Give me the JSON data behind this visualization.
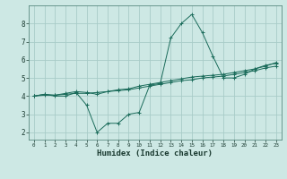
{
  "xlabel": "Humidex (Indice chaleur)",
  "bg_color": "#cde8e4",
  "grid_color": "#a8ccc8",
  "line_color": "#1a6b5a",
  "x_ticks": [
    0,
    1,
    2,
    3,
    4,
    5,
    6,
    7,
    8,
    9,
    10,
    11,
    12,
    13,
    14,
    15,
    16,
    17,
    18,
    19,
    20,
    21,
    22,
    23
  ],
  "y_ticks": [
    2,
    3,
    4,
    5,
    6,
    7,
    8
  ],
  "ylim": [
    1.6,
    9.0
  ],
  "xlim": [
    -0.5,
    23.5
  ],
  "line1_x": [
    0,
    1,
    2,
    3,
    4,
    5,
    6,
    7,
    8,
    9,
    10,
    11,
    12,
    13,
    14,
    15,
    16,
    17,
    18,
    19,
    20,
    21,
    22,
    23
  ],
  "line1_y": [
    4.0,
    4.1,
    4.0,
    4.0,
    4.2,
    3.5,
    2.0,
    2.5,
    2.5,
    3.0,
    3.1,
    4.6,
    4.7,
    7.2,
    8.0,
    8.5,
    7.5,
    6.2,
    5.0,
    5.0,
    5.2,
    5.5,
    5.7,
    5.8
  ],
  "line2_x": [
    0,
    1,
    2,
    3,
    4,
    5,
    6,
    7,
    8,
    9,
    10,
    11,
    12,
    13,
    14,
    15,
    16,
    17,
    18,
    19,
    20,
    21,
    22,
    23
  ],
  "line2_y": [
    4.0,
    4.05,
    4.05,
    4.1,
    4.15,
    4.15,
    4.2,
    4.25,
    4.3,
    4.35,
    4.45,
    4.55,
    4.65,
    4.75,
    4.85,
    4.9,
    5.0,
    5.05,
    5.1,
    5.2,
    5.3,
    5.4,
    5.55,
    5.65
  ],
  "line3_x": [
    0,
    1,
    2,
    3,
    4,
    5,
    6,
    7,
    8,
    9,
    10,
    11,
    12,
    13,
    14,
    15,
    16,
    17,
    18,
    19,
    20,
    21,
    22,
    23
  ],
  "line3_y": [
    4.0,
    4.1,
    4.05,
    4.15,
    4.25,
    4.2,
    4.1,
    4.25,
    4.35,
    4.4,
    4.55,
    4.65,
    4.75,
    4.85,
    4.95,
    5.05,
    5.1,
    5.15,
    5.2,
    5.3,
    5.4,
    5.5,
    5.65,
    5.85
  ]
}
